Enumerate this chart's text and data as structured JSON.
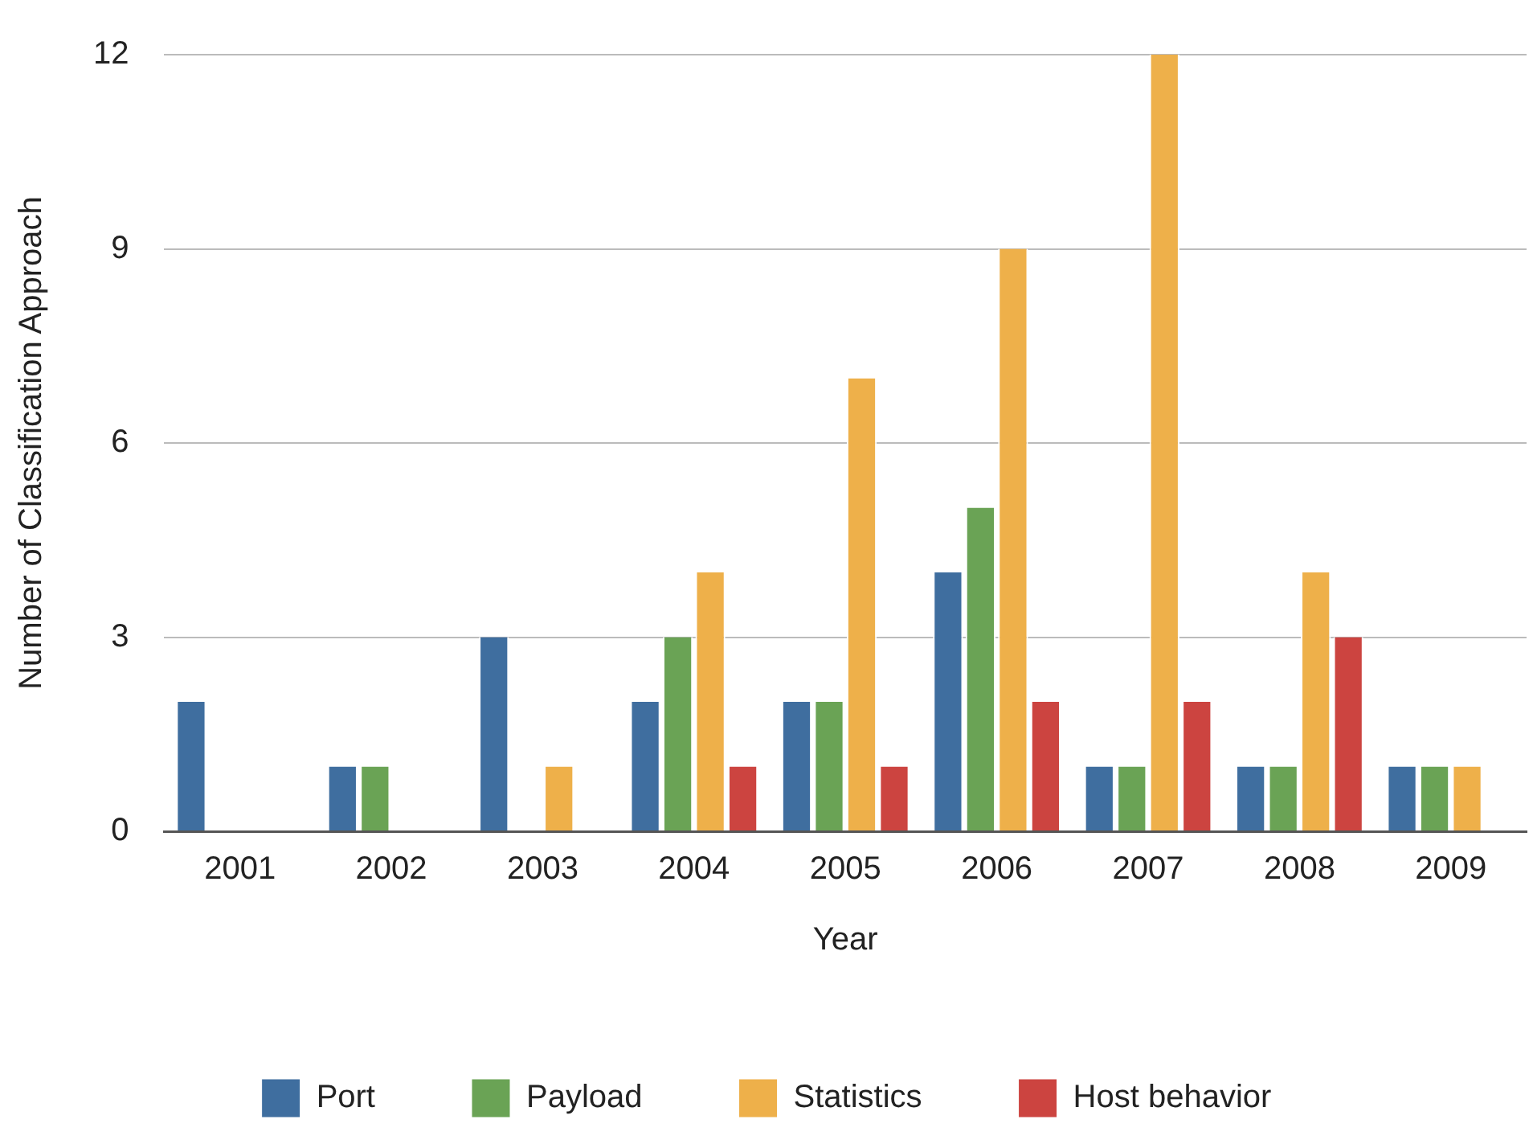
{
  "chart_data": {
    "type": "bar",
    "xlabel": "Year",
    "ylabel": "Number of Classification Approach",
    "categories": [
      "2001",
      "2002",
      "2003",
      "2004",
      "2005",
      "2006",
      "2007",
      "2008",
      "2009"
    ],
    "series": [
      {
        "name": "Port",
        "color": "#3f6e9f",
        "values": [
          2,
          1,
          3,
          2,
          2,
          4,
          1,
          1,
          1
        ]
      },
      {
        "name": "Payload",
        "color": "#6aa355",
        "values": [
          0,
          1,
          0,
          3,
          2,
          5,
          1,
          1,
          1
        ]
      },
      {
        "name": "Statistics",
        "color": "#eeb04a",
        "values": [
          0,
          0,
          1,
          4,
          7,
          9,
          12,
          4,
          1
        ]
      },
      {
        "name": "Host behavior",
        "color": "#cc4440",
        "values": [
          0,
          0,
          0,
          1,
          1,
          2,
          2,
          3,
          0
        ]
      }
    ],
    "ylim": [
      0,
      12
    ],
    "yticks": [
      0,
      3,
      6,
      9,
      12
    ],
    "grid": "y",
    "legend": "bottom"
  }
}
